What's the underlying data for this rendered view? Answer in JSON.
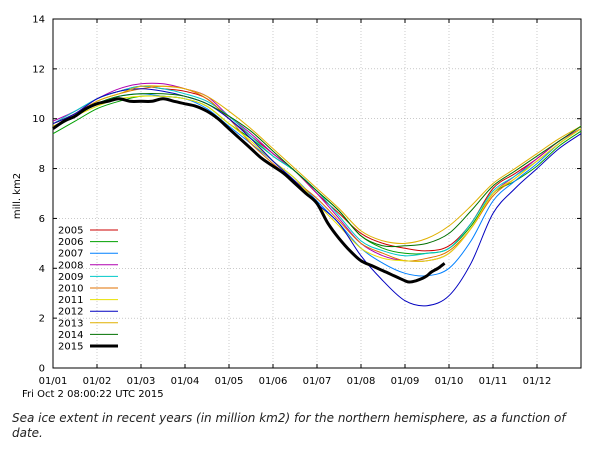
{
  "timestamp": "Fri Oct  2 08:00:22 UTC 2015",
  "caption": "Sea ice extent in recent years (in million km2) for the northern hemisphere, as a function of date.",
  "chart_data": {
    "type": "line",
    "ylabel": "mill. km2",
    "xlabel": "",
    "ylim": [
      0,
      14
    ],
    "yticks": [
      0,
      2,
      4,
      6,
      8,
      10,
      12,
      14
    ],
    "x_tick_labels": [
      "01/01",
      "01/02",
      "01/03",
      "01/04",
      "01/05",
      "01/06",
      "01/07",
      "01/08",
      "01/09",
      "01/10",
      "01/11",
      "01/12"
    ],
    "x_unit": "month (1 = 01/01 ... 13 = 01/01 next year)",
    "xlim": [
      1,
      13
    ],
    "grid": true,
    "legend_position": "bottom-left",
    "series": [
      {
        "name": "2005",
        "color": "#cc0000",
        "x": [
          1,
          1.5,
          2,
          2.5,
          3,
          3.5,
          4,
          4.5,
          5,
          5.5,
          6,
          6.5,
          7,
          7.5,
          8,
          8.5,
          9,
          9.5,
          10,
          10.5,
          11,
          11.5,
          12,
          12.5,
          13
        ],
        "values": [
          9.8,
          10.2,
          10.8,
          11.1,
          11.3,
          11.2,
          11.1,
          10.8,
          10.0,
          9.3,
          8.6,
          7.9,
          7.0,
          6.2,
          5.4,
          5.0,
          4.8,
          4.7,
          4.9,
          5.8,
          7.2,
          7.8,
          8.4,
          9.1,
          9.6
        ]
      },
      {
        "name": "2006",
        "color": "#00a000",
        "x": [
          1,
          1.5,
          2,
          2.5,
          3,
          3.5,
          4,
          4.5,
          5,
          5.5,
          6,
          6.5,
          7,
          7.5,
          8,
          8.5,
          9,
          9.5,
          10,
          10.5,
          11,
          11.5,
          12,
          12.5,
          13
        ],
        "values": [
          9.4,
          9.9,
          10.4,
          10.7,
          10.9,
          10.9,
          10.8,
          10.5,
          9.8,
          9.2,
          8.5,
          7.9,
          7.1,
          6.3,
          5.3,
          4.8,
          4.6,
          4.6,
          4.8,
          5.7,
          7.0,
          7.5,
          8.1,
          8.9,
          9.5
        ]
      },
      {
        "name": "2007",
        "color": "#0080ff",
        "x": [
          1,
          1.5,
          2,
          2.5,
          3,
          3.5,
          4,
          4.5,
          5,
          5.5,
          6,
          6.5,
          7,
          7.5,
          8,
          8.5,
          9,
          9.5,
          10,
          10.5,
          11,
          11.5,
          12,
          12.5,
          13
        ],
        "values": [
          9.7,
          10.1,
          10.6,
          10.9,
          11.0,
          10.9,
          10.8,
          10.4,
          9.7,
          9.0,
          8.3,
          7.6,
          6.7,
          5.8,
          4.8,
          4.2,
          3.8,
          3.7,
          4.0,
          5.1,
          6.7,
          7.5,
          8.2,
          9.0,
          9.6
        ]
      },
      {
        "name": "2008",
        "color": "#b000b0",
        "x": [
          1,
          1.5,
          2,
          2.5,
          3,
          3.5,
          4,
          4.5,
          5,
          5.5,
          6,
          6.5,
          7,
          7.5,
          8,
          8.5,
          9,
          9.5,
          10,
          10.5,
          11,
          11.5,
          12,
          12.5,
          13
        ],
        "values": [
          9.9,
          10.3,
          10.8,
          11.2,
          11.4,
          11.4,
          11.2,
          10.9,
          10.1,
          9.4,
          8.6,
          7.9,
          7.0,
          6.0,
          5.0,
          4.5,
          4.3,
          4.3,
          4.6,
          5.6,
          7.0,
          7.7,
          8.4,
          9.1,
          9.6
        ]
      },
      {
        "name": "2009",
        "color": "#00c8c8",
        "x": [
          1,
          1.5,
          2,
          2.5,
          3,
          3.5,
          4,
          4.5,
          5,
          5.5,
          6,
          6.5,
          7,
          7.5,
          8,
          8.5,
          9,
          9.5,
          10,
          10.5,
          11,
          11.5,
          12,
          12.5,
          13
        ],
        "values": [
          9.8,
          10.3,
          10.8,
          11.1,
          11.3,
          11.2,
          11.0,
          10.7,
          10.1,
          9.3,
          8.5,
          7.9,
          7.1,
          6.1,
          5.1,
          4.7,
          4.5,
          4.6,
          4.8,
          5.8,
          7.1,
          7.7,
          8.3,
          9.0,
          9.6
        ]
      },
      {
        "name": "2010",
        "color": "#e07000",
        "x": [
          1,
          1.5,
          2,
          2.5,
          3,
          3.5,
          4,
          4.5,
          5,
          5.5,
          6,
          6.5,
          7,
          7.5,
          8,
          8.5,
          9,
          9.5,
          10,
          10.5,
          11,
          11.5,
          12,
          12.5,
          13
        ],
        "values": [
          9.8,
          10.2,
          10.7,
          11.0,
          11.2,
          11.3,
          11.2,
          10.8,
          10.0,
          9.0,
          8.2,
          7.5,
          6.8,
          5.9,
          5.0,
          4.6,
          4.3,
          4.4,
          4.7,
          5.6,
          6.9,
          7.6,
          8.3,
          9.0,
          9.6
        ]
      },
      {
        "name": "2011",
        "color": "#e8e000",
        "x": [
          1,
          1.5,
          2,
          2.5,
          3,
          3.5,
          4,
          4.5,
          5,
          5.5,
          6,
          6.5,
          7,
          7.5,
          8,
          8.5,
          9,
          9.5,
          10,
          10.5,
          11,
          11.5,
          12,
          12.5,
          13
        ],
        "values": [
          9.7,
          10.1,
          10.5,
          10.8,
          10.9,
          10.9,
          10.8,
          10.5,
          9.8,
          9.1,
          8.3,
          7.6,
          6.6,
          5.7,
          4.8,
          4.4,
          4.3,
          4.3,
          4.6,
          5.6,
          7.0,
          7.6,
          8.3,
          9.0,
          9.6
        ]
      },
      {
        "name": "2012",
        "color": "#0000c0",
        "x": [
          1,
          1.5,
          2,
          2.5,
          3,
          3.5,
          4,
          4.5,
          5,
          5.5,
          6,
          6.5,
          7,
          7.5,
          8,
          8.5,
          9,
          9.5,
          10,
          10.5,
          11,
          11.5,
          12,
          12.5,
          13
        ],
        "values": [
          9.8,
          10.2,
          10.8,
          11.1,
          11.2,
          11.1,
          10.9,
          10.6,
          10.0,
          9.2,
          8.3,
          7.5,
          6.6,
          5.8,
          4.5,
          3.5,
          2.7,
          2.5,
          2.9,
          4.2,
          6.2,
          7.2,
          8.0,
          8.8,
          9.4
        ]
      },
      {
        "name": "2013",
        "color": "#e0b000",
        "x": [
          1,
          1.5,
          2,
          2.5,
          3,
          3.5,
          4,
          4.5,
          5,
          5.5,
          6,
          6.5,
          7,
          7.5,
          8,
          8.5,
          9,
          9.5,
          10,
          10.5,
          11,
          11.5,
          12,
          12.5,
          13
        ],
        "values": [
          9.7,
          10.1,
          10.7,
          11.0,
          11.3,
          11.3,
          11.2,
          10.9,
          10.3,
          9.6,
          8.8,
          8.0,
          7.2,
          6.4,
          5.5,
          5.1,
          5.0,
          5.2,
          5.7,
          6.5,
          7.4,
          8.0,
          8.6,
          9.2,
          9.7
        ]
      },
      {
        "name": "2014",
        "color": "#007000",
        "x": [
          1,
          1.5,
          2,
          2.5,
          3,
          3.5,
          4,
          4.5,
          5,
          5.5,
          6,
          6.5,
          7,
          7.5,
          8,
          8.5,
          9,
          9.5,
          10,
          10.5,
          11,
          11.5,
          12,
          12.5,
          13
        ],
        "values": [
          9.6,
          10.1,
          10.6,
          10.9,
          11.0,
          11.0,
          10.9,
          10.6,
          10.1,
          9.5,
          8.7,
          7.9,
          7.1,
          6.3,
          5.3,
          4.9,
          4.9,
          5.0,
          5.4,
          6.3,
          7.3,
          7.9,
          8.5,
          9.1,
          9.7
        ]
      },
      {
        "name": "2015",
        "color": "#000000",
        "width": 3,
        "x": [
          1,
          1.25,
          1.5,
          1.75,
          2,
          2.25,
          2.5,
          2.75,
          3,
          3.25,
          3.5,
          3.75,
          4,
          4.25,
          4.5,
          4.75,
          5,
          5.25,
          5.5,
          5.75,
          6,
          6.25,
          6.5,
          6.75,
          7,
          7.25,
          7.5,
          7.75,
          8,
          8.25,
          8.5,
          8.75,
          9,
          9.1,
          9.25,
          9.4,
          9.5,
          9.6,
          9.75,
          9.9
        ],
        "values": [
          9.6,
          9.9,
          10.1,
          10.4,
          10.6,
          10.7,
          10.8,
          10.7,
          10.7,
          10.7,
          10.8,
          10.7,
          10.6,
          10.5,
          10.3,
          10.0,
          9.6,
          9.2,
          8.8,
          8.4,
          8.1,
          7.8,
          7.4,
          7.0,
          6.6,
          5.8,
          5.2,
          4.7,
          4.3,
          4.1,
          3.9,
          3.7,
          3.5,
          3.45,
          3.5,
          3.6,
          3.7,
          3.85,
          4.0,
          4.2
        ]
      }
    ]
  }
}
